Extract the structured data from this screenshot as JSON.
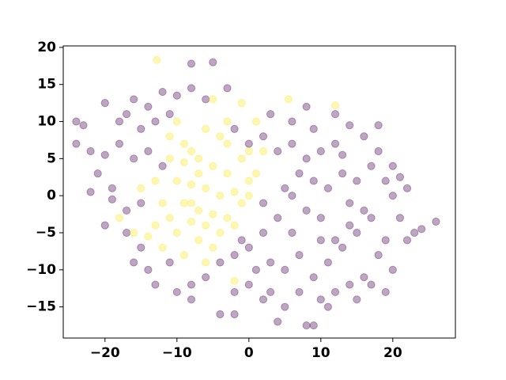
{
  "chart_data": {
    "type": "scatter",
    "xlim": [
      -25.8,
      28.7
    ],
    "ylim": [
      -19.2,
      20.2
    ],
    "xticks": [
      {
        "value": -20,
        "label": "−20"
      },
      {
        "value": -10,
        "label": "−10"
      },
      0,
      10,
      20
    ],
    "yticks": [
      {
        "value": -15,
        "label": "−15"
      },
      {
        "value": -10,
        "label": "−10"
      },
      {
        "value": -5,
        "label": "−5"
      },
      0,
      5,
      10,
      15,
      20
    ],
    "alpha": 0.35,
    "series": [
      {
        "color": "#440154",
        "x": [
          -23,
          -22,
          -20,
          -18,
          -16,
          -14,
          -12,
          -10,
          -8,
          -6,
          -3,
          -8,
          -5,
          -24,
          -21,
          -19,
          -22,
          -20,
          -17,
          -15,
          -16,
          -13,
          -10,
          -8,
          -6,
          -4,
          -2,
          0,
          2,
          4,
          5,
          8,
          9,
          10,
          12,
          14,
          16,
          18,
          20,
          22,
          24,
          26,
          22,
          20,
          18,
          16,
          14,
          12,
          10,
          8,
          6,
          4,
          2,
          0,
          -2,
          3,
          6,
          9,
          12,
          18,
          20,
          16,
          14,
          12,
          10,
          8,
          6,
          4,
          2,
          0,
          -2,
          3,
          5,
          7,
          9,
          11,
          13,
          15,
          17,
          19,
          21,
          23,
          15,
          13,
          11,
          9,
          7,
          5,
          17,
          19,
          21,
          14,
          10,
          6,
          2,
          -18,
          -16,
          -14,
          -12,
          -20,
          -17,
          -15,
          -13,
          -11,
          -19,
          -15,
          -17,
          -14,
          -11,
          -8,
          -4,
          -1,
          1,
          7,
          11,
          3,
          15,
          17,
          19,
          -24,
          -2,
          8,
          13
        ],
        "y": [
          9.5,
          6,
          12.5,
          10,
          13,
          12,
          14,
          13.5,
          14.5,
          13,
          14.5,
          17.8,
          18,
          7,
          3,
          1,
          0.5,
          -4,
          -2,
          -7,
          -9,
          -12,
          -13,
          -14,
          -11,
          -16,
          -13,
          -12,
          -14,
          -17,
          -15,
          -17.5,
          -17.5,
          -14,
          -13,
          -12,
          -11,
          -8,
          -10,
          -6,
          -4.5,
          -3.5,
          1,
          4,
          6,
          8,
          9.5,
          7,
          6,
          5,
          7,
          6,
          8,
          7,
          9,
          11,
          10,
          9,
          11,
          9.5,
          0,
          -2,
          -4,
          -6,
          -3,
          -2,
          0,
          -3,
          -5,
          -7,
          -8,
          -9,
          -10,
          -8,
          -11,
          -9,
          -7,
          -5,
          -3,
          -6,
          -3,
          -5,
          2,
          3,
          1,
          2,
          3,
          1,
          4,
          2,
          2.5,
          -1,
          -6,
          -5,
          -1,
          7,
          5,
          6,
          4,
          5.5,
          11,
          9,
          10,
          11,
          -0.5,
          -1,
          -5,
          -10,
          -9,
          -12,
          -9,
          -6,
          -10,
          -13,
          -15,
          -13,
          -14,
          -12,
          -13,
          10,
          -16,
          12,
          5.5
        ]
      },
      {
        "color": "#fde725",
        "x": [
          -12.8,
          -5,
          -1,
          1,
          5.5,
          12,
          -10,
          -6,
          -4,
          -3,
          -8,
          -11,
          -9,
          -7,
          -5,
          -3,
          -1,
          -13,
          -10,
          -8,
          -6,
          -4,
          -2,
          0,
          -15,
          -12,
          -9,
          -7,
          -5,
          -3,
          -11,
          -8,
          -6,
          -4,
          -14,
          -10,
          -7,
          -5,
          -12,
          -9,
          -6,
          -2,
          -18,
          0,
          1,
          2,
          -2,
          -16,
          -1,
          -7,
          -9,
          -11,
          -3,
          0,
          -13,
          -8
        ],
        "y": [
          18.3,
          13,
          12.5,
          10,
          13,
          12.2,
          10,
          9,
          8,
          7,
          6,
          5,
          4.5,
          5,
          4,
          3,
          5,
          2,
          2,
          1.5,
          1,
          0,
          0.5,
          0,
          1,
          -1,
          -1,
          -2,
          -2.5,
          -3,
          -3,
          -3.5,
          -4,
          -5,
          -5.5,
          -5,
          -6,
          -7,
          -7,
          -8,
          -9,
          -11.5,
          -3,
          2,
          3,
          6,
          -4,
          -5,
          -1,
          3,
          7,
          8,
          10,
          6,
          -4,
          -1
        ]
      }
    ]
  }
}
